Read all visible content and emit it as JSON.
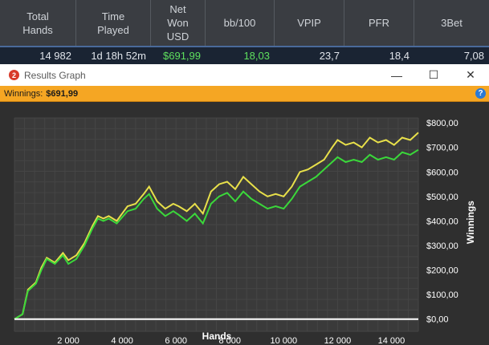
{
  "stats": {
    "headers": [
      "Total\nHands",
      "Time\nPlayed",
      "Net\nWon\nUSD",
      "bb/100",
      "VPIP",
      "PFR",
      "3Bet"
    ],
    "values": [
      "14 982",
      "1d 18h 52m",
      "$691,99",
      "18,03",
      "23,7",
      "18,4",
      "7,08"
    ]
  },
  "window": {
    "title": "Results Graph",
    "icon_text": "2",
    "minimize": "—",
    "maximize": "☐",
    "close": "✕"
  },
  "winnings_bar": {
    "label": "Winnings:",
    "value": "$691,99",
    "help": "?"
  },
  "chart_data": {
    "type": "line",
    "xlabel": "Hands",
    "ylabel": "Winnings",
    "xlim": [
      0,
      15000
    ],
    "ylim": [
      -50,
      820
    ],
    "x_ticks": [
      2000,
      4000,
      6000,
      8000,
      10000,
      12000,
      14000
    ],
    "x_tick_labels": [
      "2 000",
      "4 000",
      "6 000",
      "8 000",
      "10 000",
      "12 000",
      "14 000"
    ],
    "y_ticks": [
      0,
      100,
      200,
      300,
      400,
      500,
      600,
      700,
      800
    ],
    "y_tick_labels": [
      "$0,00",
      "$100,00",
      "$200,00",
      "$300,00",
      "$400,00",
      "$500,00",
      "$600,00",
      "$700,00",
      "$800,00"
    ],
    "grid": true,
    "series": [
      {
        "color": "#e8e04a",
        "x": [
          0,
          300,
          500,
          800,
          1000,
          1200,
          1500,
          1800,
          2000,
          2300,
          2600,
          2900,
          3100,
          3300,
          3500,
          3800,
          4000,
          4200,
          4500,
          4800,
          5000,
          5300,
          5600,
          5900,
          6100,
          6400,
          6700,
          7000,
          7300,
          7600,
          7900,
          8200,
          8500,
          8800,
          9100,
          9400,
          9700,
          10000,
          10300,
          10600,
          10900,
          11200,
          11500,
          11800,
          12000,
          12300,
          12600,
          12900,
          13200,
          13500,
          13800,
          14100,
          14400,
          14700,
          15000
        ],
        "y": [
          0,
          20,
          120,
          150,
          210,
          250,
          230,
          270,
          240,
          260,
          310,
          380,
          420,
          410,
          420,
          400,
          430,
          460,
          470,
          510,
          540,
          480,
          450,
          470,
          460,
          440,
          470,
          430,
          520,
          550,
          560,
          530,
          580,
          550,
          520,
          500,
          510,
          500,
          540,
          600,
          610,
          630,
          650,
          700,
          730,
          710,
          720,
          700,
          740,
          720,
          730,
          710,
          740,
          730,
          760
        ]
      },
      {
        "color": "#3ad83a",
        "x": [
          0,
          300,
          500,
          800,
          1000,
          1200,
          1500,
          1800,
          2000,
          2300,
          2600,
          2900,
          3100,
          3300,
          3500,
          3800,
          4000,
          4200,
          4500,
          4800,
          5000,
          5300,
          5600,
          5900,
          6100,
          6400,
          6700,
          7000,
          7300,
          7600,
          7900,
          8200,
          8500,
          8800,
          9100,
          9400,
          9700,
          10000,
          10300,
          10600,
          10900,
          11200,
          11500,
          11800,
          12000,
          12300,
          12600,
          12900,
          13200,
          13500,
          13800,
          14100,
          14400,
          14700,
          15000
        ],
        "y": [
          0,
          20,
          115,
          145,
          200,
          245,
          225,
          260,
          225,
          245,
          300,
          370,
          410,
          400,
          410,
          390,
          415,
          440,
          450,
          490,
          510,
          450,
          420,
          440,
          425,
          400,
          430,
          390,
          470,
          500,
          515,
          480,
          520,
          490,
          470,
          450,
          460,
          450,
          490,
          540,
          560,
          580,
          610,
          640,
          660,
          640,
          650,
          640,
          670,
          650,
          660,
          650,
          680,
          670,
          690
        ]
      },
      {
        "color": "#ffffff",
        "x": [
          0,
          15000
        ],
        "y": [
          0,
          0
        ]
      }
    ]
  }
}
